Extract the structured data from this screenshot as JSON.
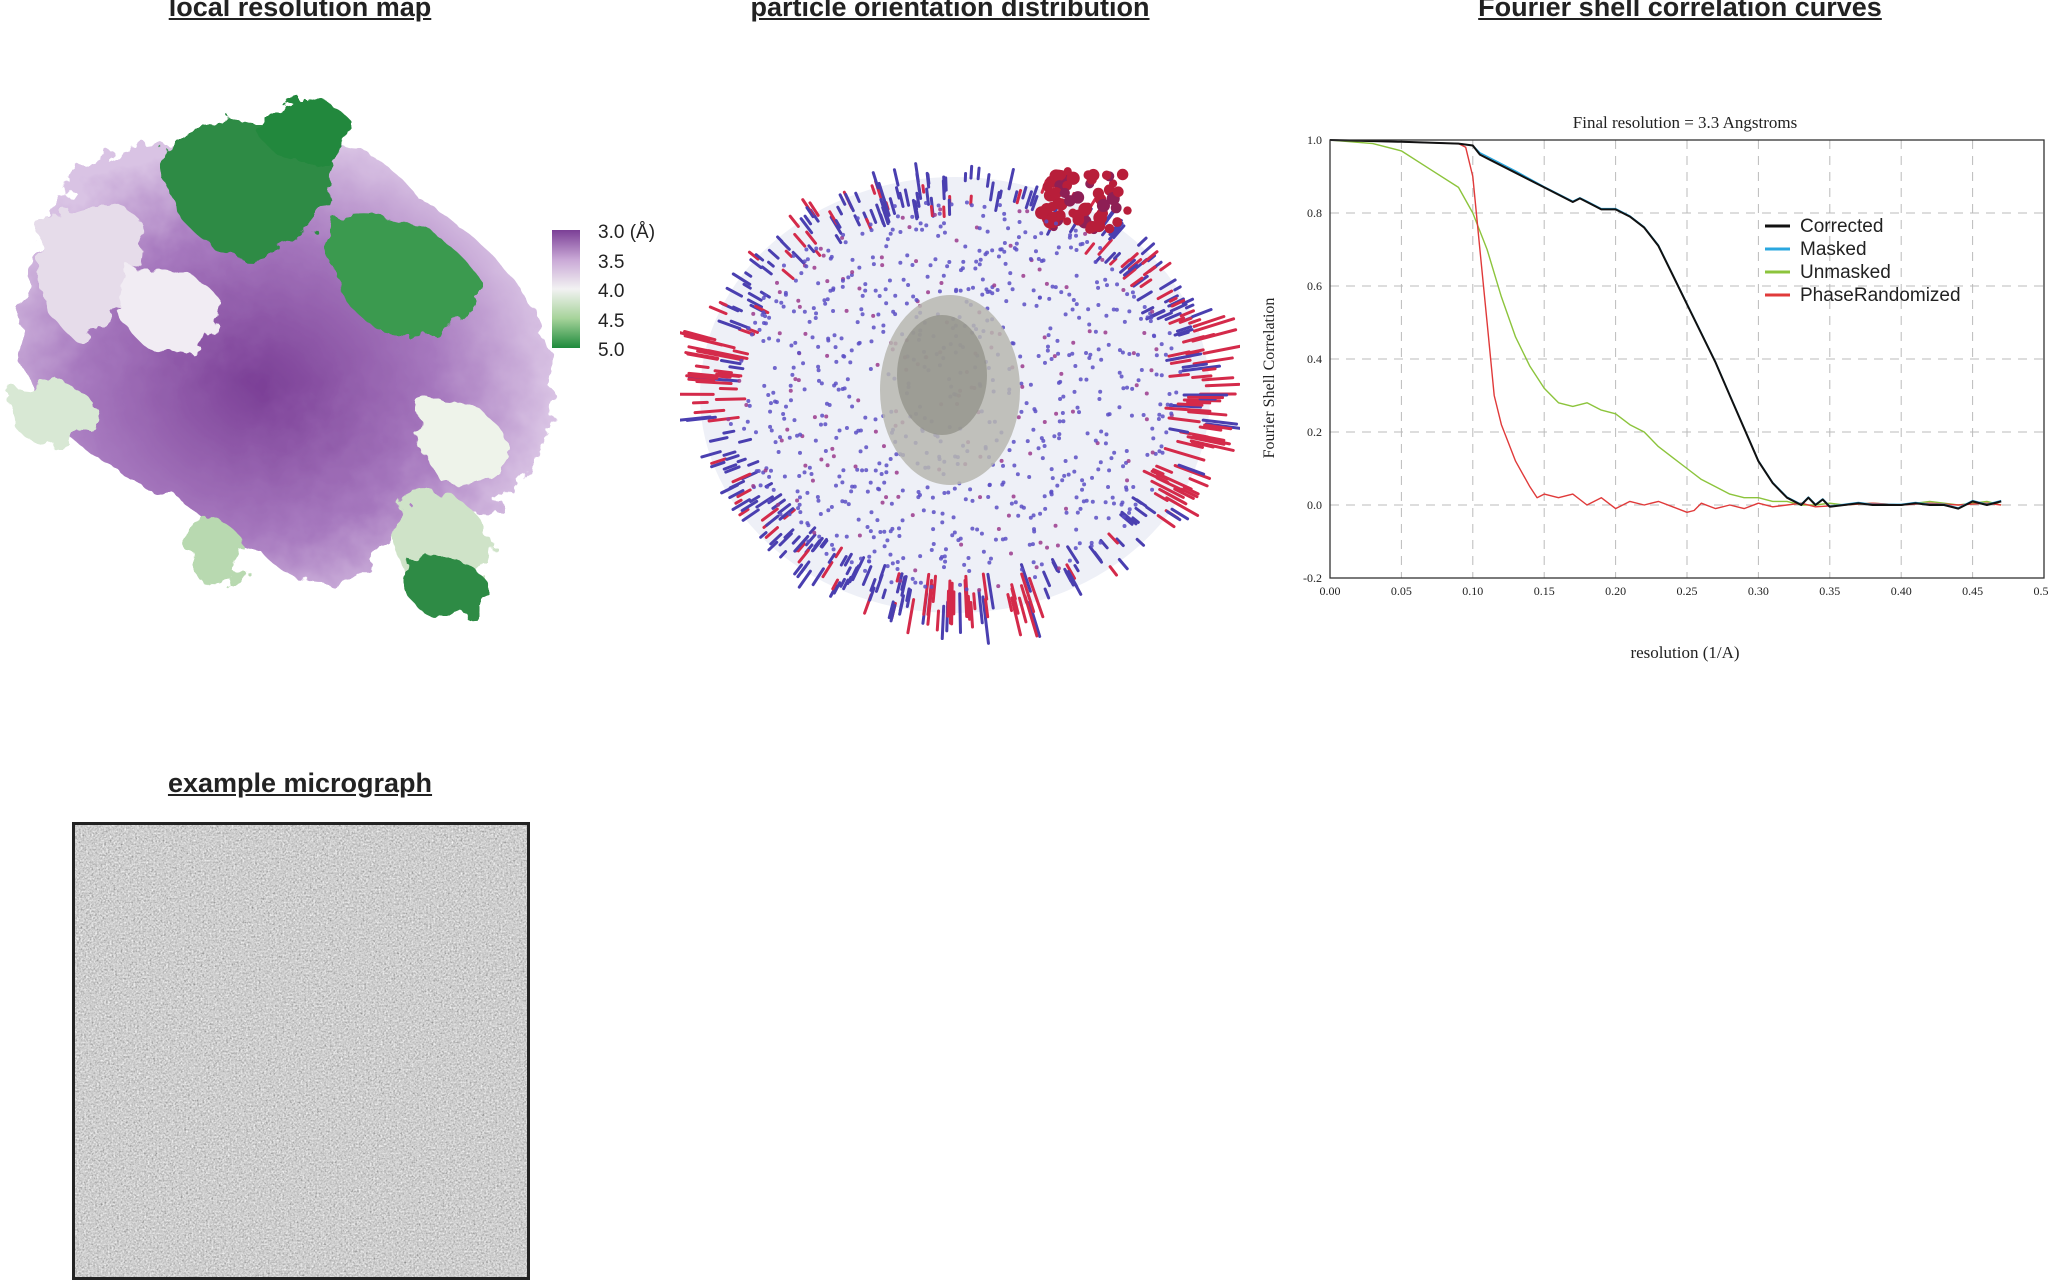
{
  "titles": {
    "local_resolution": "local resolution map",
    "orientation": "particle orientation distribution",
    "fsc": "Fourier shell correlation curves",
    "micrograph": "example micrograph"
  },
  "colorbar": {
    "labels": [
      "3.0 (Å)",
      "3.5",
      "4.0",
      "4.5",
      "5.0"
    ],
    "colors": [
      "#7b3f96",
      "#c9a8d6",
      "#f2f2f2",
      "#a6d39a",
      "#1e8a3c"
    ]
  },
  "chart_data": {
    "type": "line",
    "title": "Final resolution =   3.3 Angstroms",
    "xlabel": "resolution (1/A)",
    "ylabel": "Fourier Shell Correlation",
    "xlim": [
      0.0,
      0.5
    ],
    "ylim": [
      -0.2,
      1.0
    ],
    "xticks": [
      "0.00",
      "0.05",
      "0.10",
      "0.15",
      "0.20",
      "0.25",
      "0.30",
      "0.35",
      "0.40",
      "0.45",
      "0.50"
    ],
    "yticks": [
      "-0.2",
      "0.0",
      "0.2",
      "0.4",
      "0.6",
      "0.8",
      "1.0"
    ],
    "grid": true,
    "legend_position": "right",
    "series": [
      {
        "name": "Corrected",
        "color": "#111111",
        "x": [
          0.0,
          0.05,
          0.09,
          0.1,
          0.105,
          0.11,
          0.13,
          0.15,
          0.17,
          0.175,
          0.18,
          0.19,
          0.2,
          0.21,
          0.22,
          0.23,
          0.24,
          0.25,
          0.26,
          0.27,
          0.28,
          0.29,
          0.3,
          0.31,
          0.32,
          0.33,
          0.335,
          0.34,
          0.345,
          0.35,
          0.36,
          0.37,
          0.38,
          0.39,
          0.4,
          0.41,
          0.42,
          0.43,
          0.44,
          0.45,
          0.46,
          0.47
        ],
        "y": [
          1.0,
          0.995,
          0.99,
          0.985,
          0.96,
          0.95,
          0.91,
          0.87,
          0.83,
          0.84,
          0.83,
          0.81,
          0.81,
          0.79,
          0.76,
          0.71,
          0.63,
          0.55,
          0.47,
          0.39,
          0.3,
          0.21,
          0.12,
          0.06,
          0.02,
          0.0,
          0.02,
          0.0,
          0.015,
          -0.005,
          0.0,
          0.005,
          0.0,
          0.0,
          0.0,
          0.005,
          0.0,
          0.0,
          -0.01,
          0.01,
          0.0,
          0.01
        ]
      },
      {
        "name": "Masked",
        "color": "#2aa7df",
        "x": [
          0.0,
          0.05,
          0.09,
          0.1,
          0.105,
          0.11,
          0.13,
          0.15,
          0.17,
          0.175,
          0.18,
          0.19,
          0.2,
          0.21,
          0.22,
          0.23,
          0.24,
          0.25,
          0.26,
          0.27,
          0.28,
          0.29,
          0.3,
          0.31,
          0.32,
          0.33,
          0.335,
          0.34,
          0.345,
          0.35,
          0.36,
          0.37,
          0.38,
          0.39,
          0.4,
          0.41,
          0.42,
          0.43,
          0.44,
          0.45,
          0.46,
          0.47
        ],
        "y": [
          1.0,
          0.995,
          0.99,
          0.985,
          0.965,
          0.955,
          0.915,
          0.872,
          0.832,
          0.842,
          0.832,
          0.812,
          0.812,
          0.792,
          0.762,
          0.712,
          0.632,
          0.552,
          0.472,
          0.392,
          0.302,
          0.212,
          0.122,
          0.062,
          0.022,
          0.002,
          0.022,
          0.002,
          0.017,
          -0.003,
          0.002,
          0.007,
          0.002,
          0.002,
          0.002,
          0.007,
          0.002,
          0.002,
          -0.008,
          0.012,
          0.002,
          0.012
        ]
      },
      {
        "name": "Unmasked",
        "color": "#8cc43c",
        "x": [
          0.0,
          0.03,
          0.05,
          0.07,
          0.09,
          0.1,
          0.11,
          0.12,
          0.13,
          0.14,
          0.15,
          0.16,
          0.17,
          0.18,
          0.19,
          0.2,
          0.21,
          0.22,
          0.23,
          0.24,
          0.25,
          0.26,
          0.27,
          0.28,
          0.29,
          0.3,
          0.31,
          0.32,
          0.33,
          0.34,
          0.35,
          0.36,
          0.38,
          0.4,
          0.42,
          0.44,
          0.46,
          0.47
        ],
        "y": [
          1.0,
          0.99,
          0.97,
          0.92,
          0.87,
          0.8,
          0.7,
          0.57,
          0.46,
          0.38,
          0.32,
          0.28,
          0.27,
          0.28,
          0.26,
          0.25,
          0.22,
          0.2,
          0.16,
          0.13,
          0.1,
          0.07,
          0.05,
          0.03,
          0.02,
          0.02,
          0.01,
          0.01,
          0.0,
          0.0,
          0.005,
          0.0,
          0.005,
          0.0,
          0.01,
          0.0,
          0.01,
          0.0
        ]
      },
      {
        "name": "PhaseRandomized",
        "color": "#e03a3a",
        "x": [
          0.0,
          0.05,
          0.09,
          0.095,
          0.1,
          0.105,
          0.11,
          0.115,
          0.12,
          0.13,
          0.14,
          0.145,
          0.15,
          0.16,
          0.17,
          0.18,
          0.19,
          0.2,
          0.21,
          0.22,
          0.23,
          0.24,
          0.25,
          0.255,
          0.26,
          0.27,
          0.28,
          0.29,
          0.3,
          0.31,
          0.32,
          0.33,
          0.34,
          0.36,
          0.38,
          0.4,
          0.42,
          0.44,
          0.46,
          0.47
        ],
        "y": [
          1.0,
          0.995,
          0.99,
          0.98,
          0.9,
          0.7,
          0.5,
          0.3,
          0.22,
          0.12,
          0.05,
          0.02,
          0.03,
          0.02,
          0.03,
          0.0,
          0.02,
          -0.01,
          0.01,
          0.0,
          0.01,
          -0.005,
          -0.02,
          -0.015,
          0.005,
          -0.01,
          0.0,
          -0.01,
          0.005,
          -0.005,
          0.0,
          0.005,
          -0.005,
          0.0,
          0.005,
          0.0,
          0.005,
          0.0,
          0.005,
          0.0
        ]
      }
    ]
  }
}
